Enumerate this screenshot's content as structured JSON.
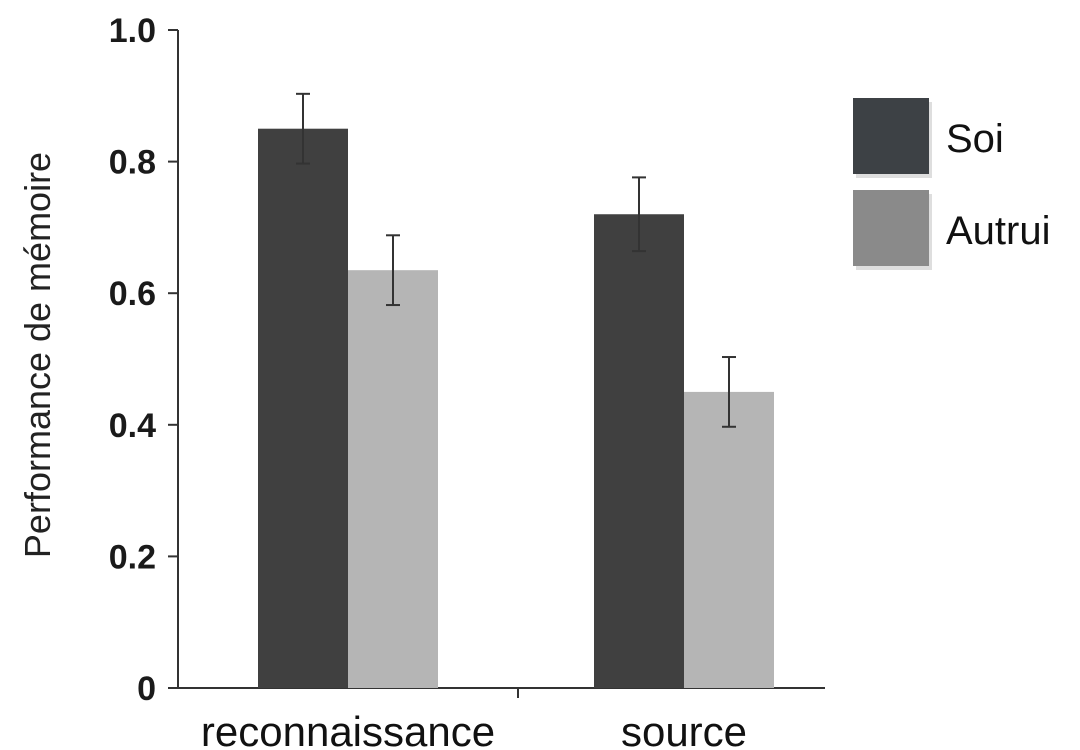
{
  "chart_data": {
    "type": "bar",
    "categories": [
      "reconnaissance",
      "source"
    ],
    "series": [
      {
        "name": "Soi",
        "values": [
          0.85,
          0.72
        ],
        "errors": [
          0.053,
          0.056
        ],
        "color": "#404040"
      },
      {
        "name": "Autrui",
        "values": [
          0.635,
          0.45
        ],
        "errors": [
          0.053,
          0.053
        ],
        "color": "#b5b5b5"
      }
    ],
    "ylabel": "Performance de mémoire",
    "xlabel": "",
    "ylim": [
      0,
      1.0
    ],
    "yticks": [
      {
        "value": 0,
        "label": "0"
      },
      {
        "value": 0.2,
        "label": "0.2"
      },
      {
        "value": 0.4,
        "label": "0.4"
      },
      {
        "value": 0.6,
        "label": "0.6"
      },
      {
        "value": 0.8,
        "label": "0.8"
      },
      {
        "value": 1.0,
        "label": "1.0"
      }
    ],
    "legend": {
      "placement": "right",
      "items": [
        {
          "label": "Soi",
          "color": "#3d4145"
        },
        {
          "label": "Autrui",
          "color": "#8a8a8a"
        }
      ]
    },
    "grid": false
  }
}
